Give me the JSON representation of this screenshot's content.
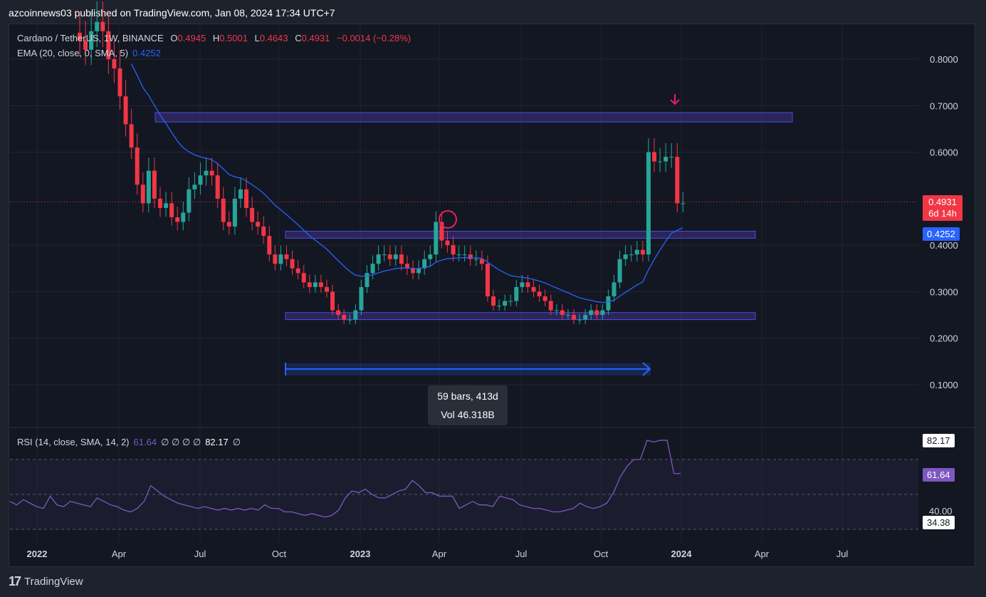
{
  "header": {
    "text": "azcoinnews03 published on TradingView.com, Jan 08, 2024 17:34 UTC+7"
  },
  "legend": {
    "symbol": "Cardano / TetherUS, 1W, BINANCE",
    "o_label": "O",
    "o": "0.4945",
    "h_label": "H",
    "h": "0.5001",
    "l_label": "L",
    "l": "0.4643",
    "c_label": "C",
    "c": "0.4931",
    "change": "−0.0014 (−0.28%)",
    "ema_label": "EMA (20, close, 0, SMA, 5)",
    "ema_value": "0.4252",
    "rsi_label": "RSI (14, close, SMA, 14, 2)",
    "rsi_value": "61.64",
    "rsi_extra": "∅ ∅ ∅ ∅",
    "rsi_value2": "82.17",
    "rsi_extra2": "∅"
  },
  "price_tags": {
    "last": "0.4931",
    "countdown": "6d 14h",
    "ema": "0.4252",
    "rsi_hi": "82.17",
    "rsi_cur": "61.64",
    "rsi_lo": "34.38",
    "rsi_40": "40.00"
  },
  "tooltip": {
    "line1": "59 bars, 413d",
    "line2": "Vol 46.318B"
  },
  "footer": {
    "brand": "TradingView"
  },
  "colors": {
    "bg": "#131722",
    "up": "#26a69a",
    "down": "#f23645",
    "ema": "#2962ff",
    "rsi": "#7e57c2"
  },
  "chart_data": {
    "type": "candlestick",
    "x_ticks": [
      "2022",
      "Apr",
      "Jul",
      "Oct",
      "2023",
      "Apr",
      "Jul",
      "Oct",
      "2024",
      "Apr",
      "Jul"
    ],
    "y_ticks": [
      "0.8000",
      "0.7000",
      "0.6000",
      "0.4000",
      "0.3000",
      "0.2000",
      "0.1000"
    ],
    "ylim": [
      0.1,
      0.8
    ],
    "candles_close": [
      0.84,
      0.82,
      0.86,
      0.88,
      0.86,
      0.8,
      0.78,
      0.72,
      0.66,
      0.61,
      0.53,
      0.49,
      0.56,
      0.5,
      0.48,
      0.49,
      0.46,
      0.45,
      0.47,
      0.52,
      0.53,
      0.55,
      0.56,
      0.55,
      0.5,
      0.45,
      0.44,
      0.5,
      0.52,
      0.48,
      0.45,
      0.44,
      0.42,
      0.38,
      0.36,
      0.38,
      0.37,
      0.35,
      0.34,
      0.32,
      0.31,
      0.32,
      0.31,
      0.3,
      0.26,
      0.25,
      0.24,
      0.24,
      0.26,
      0.31,
      0.34,
      0.36,
      0.38,
      0.38,
      0.37,
      0.38,
      0.36,
      0.35,
      0.34,
      0.35,
      0.37,
      0.38,
      0.45,
      0.41,
      0.4,
      0.38,
      0.38,
      0.38,
      0.37,
      0.37,
      0.36,
      0.29,
      0.27,
      0.27,
      0.28,
      0.28,
      0.31,
      0.32,
      0.31,
      0.3,
      0.29,
      0.28,
      0.26,
      0.26,
      0.25,
      0.25,
      0.24,
      0.24,
      0.25,
      0.26,
      0.25,
      0.26,
      0.29,
      0.32,
      0.37,
      0.38,
      0.38,
      0.39,
      0.38,
      0.6,
      0.58,
      0.58,
      0.59,
      0.59,
      0.49,
      0.49
    ],
    "ema_label_value": 0.4252,
    "zones": [
      [
        0.665,
        0.685
      ],
      [
        0.415,
        0.43
      ],
      [
        0.24,
        0.255
      ]
    ],
    "rsi_values": [
      46,
      44,
      47,
      45,
      43,
      42,
      49,
      44,
      43,
      46,
      45,
      44,
      43,
      48,
      46,
      44,
      43,
      41,
      40,
      42,
      46,
      55,
      52,
      49,
      47,
      45,
      44,
      43,
      42,
      43,
      42,
      41,
      42,
      41,
      42,
      41,
      42,
      41,
      44,
      42,
      42,
      40,
      40,
      39,
      38,
      39,
      38,
      37,
      38,
      41,
      48,
      52,
      51,
      53,
      50,
      48,
      48,
      50,
      52,
      53,
      58,
      55,
      51,
      51,
      49,
      49,
      49,
      42,
      44,
      46,
      44,
      44,
      43,
      49,
      48,
      47,
      44,
      43,
      42,
      42,
      41,
      40,
      40,
      41,
      42,
      45,
      43,
      42,
      43,
      45,
      51,
      60,
      66,
      70,
      70,
      81,
      80,
      81,
      81,
      62,
      62
    ],
    "rsi_levels": [
      70,
      50,
      30
    ]
  }
}
